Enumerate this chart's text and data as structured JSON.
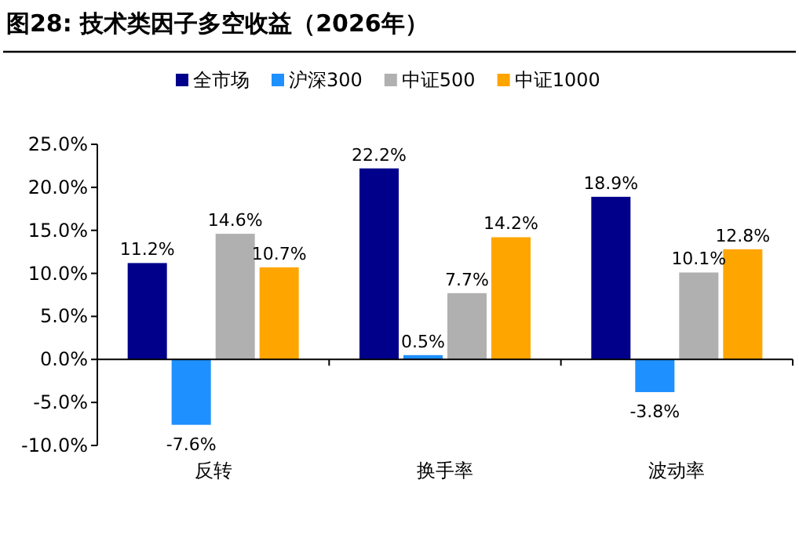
{
  "chart_data": {
    "type": "bar",
    "title": "图28:  技术类因子多空收益（2026年）",
    "categories": [
      "反转",
      "换手率",
      "波动率"
    ],
    "series": [
      {
        "name": "全市场",
        "color": "#00008b",
        "values": [
          11.2,
          22.2,
          18.9
        ],
        "value_labels": [
          "11.2%",
          "22.2%",
          "18.9%"
        ]
      },
      {
        "name": "沪深300",
        "color": "#1e90ff",
        "values": [
          -7.6,
          0.5,
          -3.8
        ],
        "value_labels": [
          "-7.6%",
          "0.5%",
          "-3.8%"
        ]
      },
      {
        "name": "中证500",
        "color": "#b0b0b0",
        "values": [
          14.6,
          7.7,
          10.1
        ],
        "value_labels": [
          "14.6%",
          "7.7%",
          "10.1%"
        ]
      },
      {
        "name": "中证1000",
        "color": "#ffa500",
        "values": [
          10.7,
          14.2,
          12.8
        ],
        "value_labels": [
          "10.7%",
          "14.2%",
          "12.8%"
        ]
      }
    ],
    "ylim": [
      -10,
      25
    ],
    "yticks": [
      {
        "value": -10,
        "label": "-10.0%"
      },
      {
        "value": -5,
        "label": "-5.0%"
      },
      {
        "value": 0,
        "label": "0.0%"
      },
      {
        "value": 5,
        "label": "5.0%"
      },
      {
        "value": 10,
        "label": "10.0%"
      },
      {
        "value": 15,
        "label": "15.0%"
      },
      {
        "value": 20,
        "label": "20.0%"
      },
      {
        "value": 25,
        "label": "25.0%"
      }
    ],
    "legend": "top"
  }
}
